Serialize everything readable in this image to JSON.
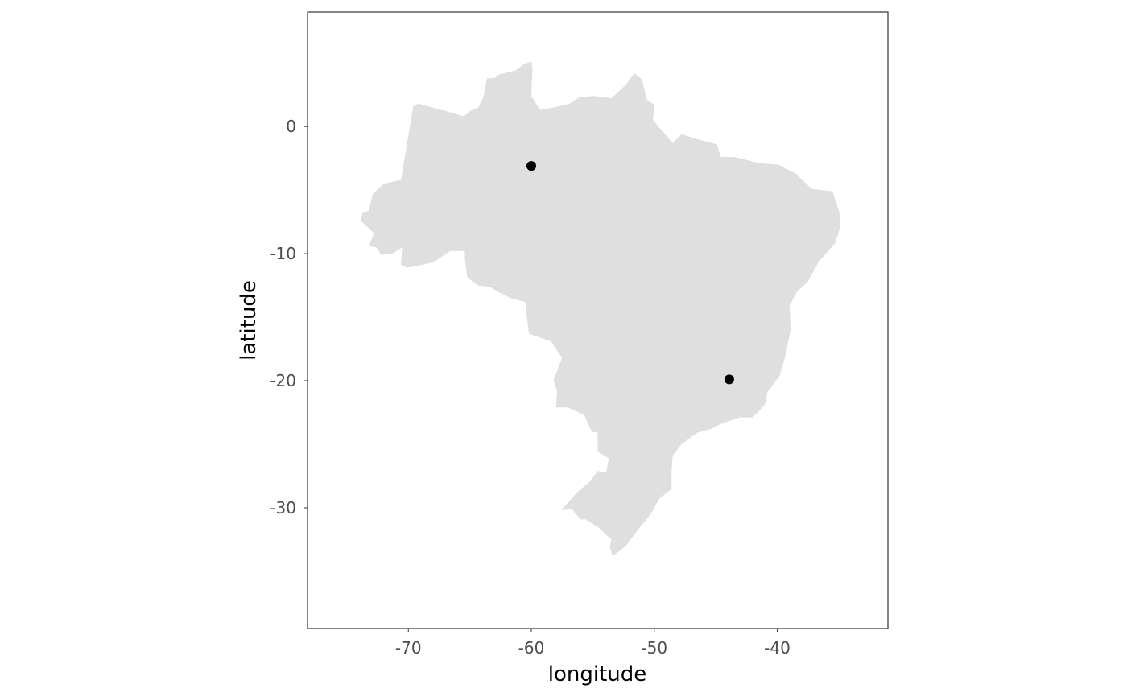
{
  "colors": {
    "land": "#dfdfdf",
    "point": "#000000",
    "panel_border": "#333333",
    "tick_text": "#4d4d4d",
    "background": "#ffffff"
  },
  "chart_data": {
    "type": "scatter",
    "title": "",
    "xlabel": "longitude",
    "ylabel": "latitude",
    "xlim": [
      -78.2,
      -31.0
    ],
    "ylim": [
      -39.5,
      9.0
    ],
    "x_ticks": [
      -70,
      -60,
      -50,
      -40
    ],
    "y_ticks": [
      0,
      -10,
      -20,
      -30
    ],
    "x_tick_labels": [
      "-70",
      "-60",
      "-50",
      "-40"
    ],
    "y_tick_labels": [
      "0",
      "-10",
      "-20",
      "-30"
    ],
    "grid": false,
    "basemap": "Brazil",
    "series": [
      {
        "points": [
          {
            "x": -60.0,
            "y": -3.1
          },
          {
            "x": -43.9,
            "y": -19.9
          }
        ]
      }
    ],
    "outline": [
      [
        -73.9,
        -7.4
      ],
      [
        -73.7,
        -6.8
      ],
      [
        -73.2,
        -6.6
      ],
      [
        -72.9,
        -5.3
      ],
      [
        -72.0,
        -4.5
      ],
      [
        -70.6,
        -4.2
      ],
      [
        -69.6,
        1.6
      ],
      [
        -69.2,
        1.8
      ],
      [
        -66.9,
        1.2
      ],
      [
        -65.5,
        0.8
      ],
      [
        -65.0,
        1.2
      ],
      [
        -64.3,
        1.5
      ],
      [
        -63.9,
        2.3
      ],
      [
        -63.6,
        3.8
      ],
      [
        -63.0,
        3.8
      ],
      [
        -62.6,
        4.1
      ],
      [
        -61.3,
        4.4
      ],
      [
        -60.6,
        4.9
      ],
      [
        -60.0,
        5.1
      ],
      [
        -59.9,
        4.6
      ],
      [
        -60.0,
        2.4
      ],
      [
        -59.3,
        1.3
      ],
      [
        -58.2,
        1.5
      ],
      [
        -56.9,
        1.8
      ],
      [
        -56.1,
        2.3
      ],
      [
        -54.9,
        2.4
      ],
      [
        -54.0,
        2.3
      ],
      [
        -53.5,
        2.2
      ],
      [
        -52.3,
        3.3
      ],
      [
        -51.6,
        4.2
      ],
      [
        -51.0,
        3.7
      ],
      [
        -50.6,
        2.1
      ],
      [
        -50.0,
        1.7
      ],
      [
        -50.1,
        0.5
      ],
      [
        -49.4,
        -0.3
      ],
      [
        -48.5,
        -1.3
      ],
      [
        -47.8,
        -0.6
      ],
      [
        -46.5,
        -1.0
      ],
      [
        -44.9,
        -1.4
      ],
      [
        -44.6,
        -2.4
      ],
      [
        -43.5,
        -2.4
      ],
      [
        -41.4,
        -2.9
      ],
      [
        -39.9,
        -3.0
      ],
      [
        -38.5,
        -3.7
      ],
      [
        -37.2,
        -4.9
      ],
      [
        -35.5,
        -5.1
      ],
      [
        -34.9,
        -6.9
      ],
      [
        -34.9,
        -8.0
      ],
      [
        -35.3,
        -9.2
      ],
      [
        -36.6,
        -10.6
      ],
      [
        -37.5,
        -12.2
      ],
      [
        -38.4,
        -13.0
      ],
      [
        -39.0,
        -14.1
      ],
      [
        -38.9,
        -15.9
      ],
      [
        -39.3,
        -17.9
      ],
      [
        -39.8,
        -19.6
      ],
      [
        -40.8,
        -20.9
      ],
      [
        -41.0,
        -21.9
      ],
      [
        -42.0,
        -22.9
      ],
      [
        -43.1,
        -22.9
      ],
      [
        -44.6,
        -23.4
      ],
      [
        -45.4,
        -23.8
      ],
      [
        -46.5,
        -24.1
      ],
      [
        -47.8,
        -25.0
      ],
      [
        -48.5,
        -25.9
      ],
      [
        -48.6,
        -27.2
      ],
      [
        -48.6,
        -28.5
      ],
      [
        -49.6,
        -29.3
      ],
      [
        -50.3,
        -30.5
      ],
      [
        -51.3,
        -31.7
      ],
      [
        -52.3,
        -33.0
      ],
      [
        -53.4,
        -33.8
      ],
      [
        -53.6,
        -33.1
      ],
      [
        -53.5,
        -32.5
      ],
      [
        -54.6,
        -31.5
      ],
      [
        -55.6,
        -30.9
      ],
      [
        -56.0,
        -30.9
      ],
      [
        -56.7,
        -30.1
      ],
      [
        -57.6,
        -30.2
      ],
      [
        -57.0,
        -29.6
      ],
      [
        -56.3,
        -28.8
      ],
      [
        -55.2,
        -27.9
      ],
      [
        -54.6,
        -27.1
      ],
      [
        -53.9,
        -27.2
      ],
      [
        -53.7,
        -26.1
      ],
      [
        -54.6,
        -25.6
      ],
      [
        -54.6,
        -24.1
      ],
      [
        -55.1,
        -24.0
      ],
      [
        -55.7,
        -22.7
      ],
      [
        -57.0,
        -22.1
      ],
      [
        -58.0,
        -22.1
      ],
      [
        -57.9,
        -20.8
      ],
      [
        -58.2,
        -20.0
      ],
      [
        -57.5,
        -18.2
      ],
      [
        -58.4,
        -16.9
      ],
      [
        -60.2,
        -16.3
      ],
      [
        -60.5,
        -13.8
      ],
      [
        -61.7,
        -13.5
      ],
      [
        -62.7,
        -13.0
      ],
      [
        -63.4,
        -12.6
      ],
      [
        -64.3,
        -12.5
      ],
      [
        -65.2,
        -11.9
      ],
      [
        -65.4,
        -10.5
      ],
      [
        -65.4,
        -9.8
      ],
      [
        -66.6,
        -9.8
      ],
      [
        -68.0,
        -10.7
      ],
      [
        -69.5,
        -11.0
      ],
      [
        -70.1,
        -11.1
      ],
      [
        -70.6,
        -10.9
      ],
      [
        -70.5,
        -9.5
      ],
      [
        -71.3,
        -10.0
      ],
      [
        -72.2,
        -10.1
      ],
      [
        -72.6,
        -9.5
      ],
      [
        -73.2,
        -9.4
      ],
      [
        -72.8,
        -8.4
      ],
      [
        -73.9,
        -7.4
      ]
    ]
  }
}
